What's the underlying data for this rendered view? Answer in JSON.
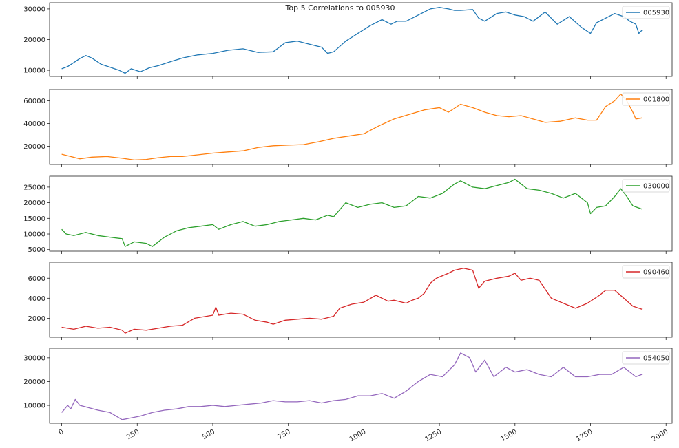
{
  "title": "Top 5 Correlations to 005930",
  "x_ticks": [
    0,
    250,
    500,
    750,
    1000,
    1250,
    1500,
    1750,
    2000
  ],
  "x_tick_labels": [
    "0",
    "250",
    "500",
    "750",
    "1000",
    "1250",
    "1500",
    "1750",
    "2000"
  ],
  "chart_data": [
    {
      "type": "line",
      "series": [
        {
          "name": "005930",
          "color": "#1f77b4"
        }
      ],
      "xlim": [
        -40,
        2020
      ],
      "ylim": [
        8000,
        32000
      ],
      "y_ticks": [
        10000,
        20000,
        30000
      ],
      "y_tick_labels": [
        "10000",
        "20000",
        "30000"
      ],
      "legend": "top-right",
      "grid": false,
      "x": [
        0,
        20,
        40,
        60,
        80,
        100,
        130,
        160,
        190,
        210,
        230,
        260,
        290,
        320,
        360,
        400,
        450,
        500,
        550,
        600,
        650,
        700,
        740,
        780,
        820,
        860,
        880,
        900,
        940,
        980,
        1020,
        1060,
        1090,
        1110,
        1140,
        1180,
        1220,
        1250,
        1280,
        1300,
        1320,
        1360,
        1380,
        1400,
        1440,
        1470,
        1500,
        1530,
        1560,
        1600,
        1640,
        1680,
        1720,
        1750,
        1770,
        1800,
        1830,
        1860,
        1880,
        1900,
        1910,
        1920
      ],
      "values": [
        10500,
        11200,
        12500,
        13800,
        14800,
        14000,
        12000,
        11000,
        10000,
        9000,
        10500,
        9500,
        10800,
        11500,
        12800,
        14000,
        15000,
        15500,
        16500,
        17000,
        15800,
        16000,
        19000,
        19500,
        18500,
        17500,
        15500,
        16000,
        19500,
        22000,
        24500,
        26500,
        25000,
        26000,
        26000,
        28000,
        30000,
        30500,
        30000,
        29500,
        29500,
        29800,
        27000,
        26000,
        28500,
        29000,
        28000,
        27500,
        26000,
        29000,
        25000,
        27500,
        24000,
        22000,
        25500,
        27000,
        28500,
        27500,
        26000,
        25000,
        22000,
        23000
      ]
    },
    {
      "type": "line",
      "series": [
        {
          "name": "001800",
          "color": "#ff7f0e"
        }
      ],
      "xlim": [
        -40,
        2020
      ],
      "ylim": [
        4000,
        70000
      ],
      "y_ticks": [
        20000,
        40000,
        60000
      ],
      "y_tick_labels": [
        "20000",
        "40000",
        "60000"
      ],
      "legend": "top-right",
      "grid": false,
      "x": [
        0,
        30,
        60,
        100,
        150,
        200,
        240,
        280,
        320,
        360,
        400,
        450,
        500,
        550,
        600,
        650,
        700,
        750,
        800,
        850,
        900,
        950,
        1000,
        1050,
        1100,
        1150,
        1200,
        1250,
        1280,
        1320,
        1360,
        1400,
        1440,
        1480,
        1520,
        1560,
        1600,
        1650,
        1700,
        1740,
        1770,
        1800,
        1830,
        1850,
        1870,
        1890,
        1900,
        1920
      ],
      "values": [
        13000,
        11000,
        9000,
        10500,
        11000,
        9500,
        8000,
        8500,
        10000,
        11000,
        11000,
        12500,
        14000,
        15000,
        16000,
        19000,
        20500,
        21000,
        21500,
        24000,
        27000,
        29000,
        31000,
        38000,
        44000,
        48000,
        52000,
        54000,
        50000,
        57000,
        54000,
        50000,
        47000,
        46000,
        47000,
        44000,
        41000,
        42000,
        45000,
        43000,
        43000,
        55000,
        60000,
        66000,
        60000,
        50000,
        44000,
        45000
      ]
    },
    {
      "type": "line",
      "series": [
        {
          "name": "030000",
          "color": "#2ca02c"
        }
      ],
      "xlim": [
        -40,
        2020
      ],
      "ylim": [
        4500,
        28500
      ],
      "y_ticks": [
        5000,
        10000,
        15000,
        20000,
        25000
      ],
      "y_tick_labels": [
        "5000",
        "10000",
        "15000",
        "20000",
        "25000"
      ],
      "legend": "top-right",
      "grid": false,
      "x": [
        0,
        15,
        40,
        80,
        120,
        160,
        200,
        210,
        240,
        280,
        300,
        340,
        380,
        420,
        460,
        500,
        520,
        560,
        600,
        640,
        680,
        720,
        760,
        800,
        840,
        880,
        900,
        940,
        980,
        1020,
        1060,
        1100,
        1140,
        1180,
        1220,
        1260,
        1300,
        1320,
        1360,
        1400,
        1440,
        1480,
        1500,
        1540,
        1580,
        1620,
        1660,
        1700,
        1740,
        1750,
        1770,
        1800,
        1830,
        1850,
        1870,
        1890,
        1920
      ],
      "values": [
        11500,
        10000,
        9500,
        10500,
        9500,
        9000,
        8500,
        6000,
        7500,
        7000,
        6000,
        9000,
        11000,
        12000,
        12500,
        13000,
        11500,
        13000,
        14000,
        12500,
        13000,
        14000,
        14500,
        15000,
        14500,
        16000,
        15500,
        20000,
        18500,
        19500,
        20000,
        18500,
        19000,
        22000,
        21500,
        23000,
        26000,
        27000,
        25000,
        24500,
        25500,
        26500,
        27500,
        24500,
        24000,
        23000,
        21500,
        23000,
        20000,
        16500,
        18500,
        19000,
        22000,
        24500,
        22000,
        19000,
        18000
      ]
    },
    {
      "type": "line",
      "series": [
        {
          "name": "090460",
          "color": "#d62728"
        }
      ],
      "xlim": [
        -40,
        2020
      ],
      "ylim": [
        100,
        7600
      ],
      "y_ticks": [
        2000,
        4000,
        6000
      ],
      "y_tick_labels": [
        "2000",
        "4000",
        "6000"
      ],
      "legend": "top-right",
      "grid": false,
      "x": [
        0,
        40,
        80,
        120,
        160,
        200,
        210,
        240,
        280,
        320,
        360,
        400,
        440,
        480,
        500,
        510,
        520,
        560,
        600,
        640,
        680,
        700,
        740,
        780,
        820,
        860,
        900,
        920,
        960,
        1000,
        1040,
        1080,
        1100,
        1140,
        1160,
        1180,
        1200,
        1220,
        1240,
        1280,
        1300,
        1330,
        1360,
        1380,
        1400,
        1440,
        1480,
        1500,
        1520,
        1550,
        1580,
        1620,
        1660,
        1700,
        1740,
        1780,
        1800,
        1830,
        1860,
        1890,
        1920
      ],
      "values": [
        1100,
        900,
        1200,
        1000,
        1100,
        800,
        500,
        900,
        800,
        1000,
        1200,
        1300,
        2000,
        2200,
        2300,
        3100,
        2300,
        2500,
        2400,
        1800,
        1600,
        1400,
        1800,
        1900,
        2000,
        1900,
        2200,
        3000,
        3400,
        3600,
        4300,
        3700,
        3800,
        3500,
        3800,
        4000,
        4500,
        5500,
        6000,
        6500,
        6800,
        7000,
        6800,
        5000,
        5700,
        6000,
        6200,
        6500,
        5800,
        6000,
        5800,
        4000,
        3500,
        3000,
        3500,
        4300,
        4800,
        4800,
        4000,
        3200,
        2900
      ]
    },
    {
      "type": "line",
      "series": [
        {
          "name": "054050",
          "color": "#9467bd"
        }
      ],
      "xlim": [
        -40,
        2020
      ],
      "ylim": [
        2500,
        34000
      ],
      "y_ticks": [
        10000,
        20000,
        30000
      ],
      "y_tick_labels": [
        "10000",
        "20000",
        "30000"
      ],
      "legend": "top-right",
      "grid": false,
      "x": [
        0,
        20,
        30,
        45,
        60,
        90,
        120,
        160,
        200,
        220,
        260,
        300,
        340,
        380,
        420,
        460,
        500,
        540,
        580,
        620,
        660,
        700,
        740,
        780,
        820,
        860,
        900,
        940,
        980,
        1020,
        1060,
        1100,
        1140,
        1180,
        1220,
        1260,
        1300,
        1320,
        1350,
        1370,
        1400,
        1430,
        1470,
        1500,
        1540,
        1580,
        1620,
        1660,
        1700,
        1740,
        1780,
        1820,
        1860,
        1880,
        1900,
        1920
      ],
      "values": [
        7000,
        10000,
        8500,
        12500,
        10000,
        9000,
        8000,
        7000,
        4000,
        4500,
        5500,
        7000,
        8000,
        8500,
        9500,
        9500,
        10000,
        9500,
        10000,
        10500,
        11000,
        12000,
        11500,
        11500,
        12000,
        11000,
        12000,
        12500,
        14000,
        14000,
        15000,
        13000,
        16000,
        20000,
        23000,
        22000,
        27000,
        32000,
        30000,
        24000,
        29000,
        22000,
        26000,
        24000,
        25000,
        23000,
        22000,
        26000,
        22000,
        22000,
        23000,
        23000,
        26000,
        24000,
        22000,
        23000
      ]
    }
  ]
}
